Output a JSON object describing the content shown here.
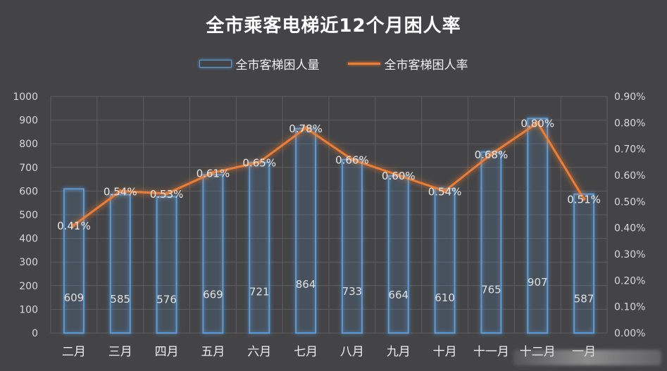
{
  "chart_data": {
    "type": "bar",
    "title": "全市乘客电梯近12个月困人率",
    "categories": [
      "二月",
      "三月",
      "四月",
      "五月",
      "六月",
      "七月",
      "八月",
      "九月",
      "十月",
      "十一月",
      "十二月",
      "一月"
    ],
    "series": [
      {
        "name": "全市客梯困人量",
        "type": "bar",
        "axis": "left",
        "color": "#5b9bd5",
        "values": [
          609,
          585,
          576,
          669,
          721,
          864,
          733,
          664,
          610,
          765,
          907,
          587
        ],
        "labels": [
          "609",
          "585",
          "576",
          "669",
          "721",
          "864",
          "733",
          "664",
          "610",
          "765",
          "907",
          "587"
        ]
      },
      {
        "name": "全市客梯困人率",
        "type": "line",
        "axis": "right",
        "color": "#ed7d31",
        "values": [
          0.41,
          0.54,
          0.53,
          0.61,
          0.65,
          0.78,
          0.66,
          0.6,
          0.54,
          0.68,
          0.8,
          0.51
        ],
        "labels": [
          "0.41%",
          "0.54%",
          "0.53%",
          "0.61%",
          "0.65%",
          "0.78%",
          "0.66%",
          "0.60%",
          "0.54%",
          "0.68%",
          "0.80%",
          "0.51%"
        ]
      }
    ],
    "ylim_left": [
      0,
      1000
    ],
    "yticks_left": [
      "0",
      "100",
      "200",
      "300",
      "400",
      "500",
      "600",
      "700",
      "800",
      "900",
      "1000"
    ],
    "ylim_right": [
      0,
      0.9
    ],
    "yticks_right": [
      "0.00%",
      "0.10%",
      "0.20%",
      "0.30%",
      "0.40%",
      "0.50%",
      "0.60%",
      "0.70%",
      "0.80%",
      "0.90%"
    ],
    "xlabel": "",
    "ylabel": "",
    "grid": true,
    "legend": "top"
  }
}
